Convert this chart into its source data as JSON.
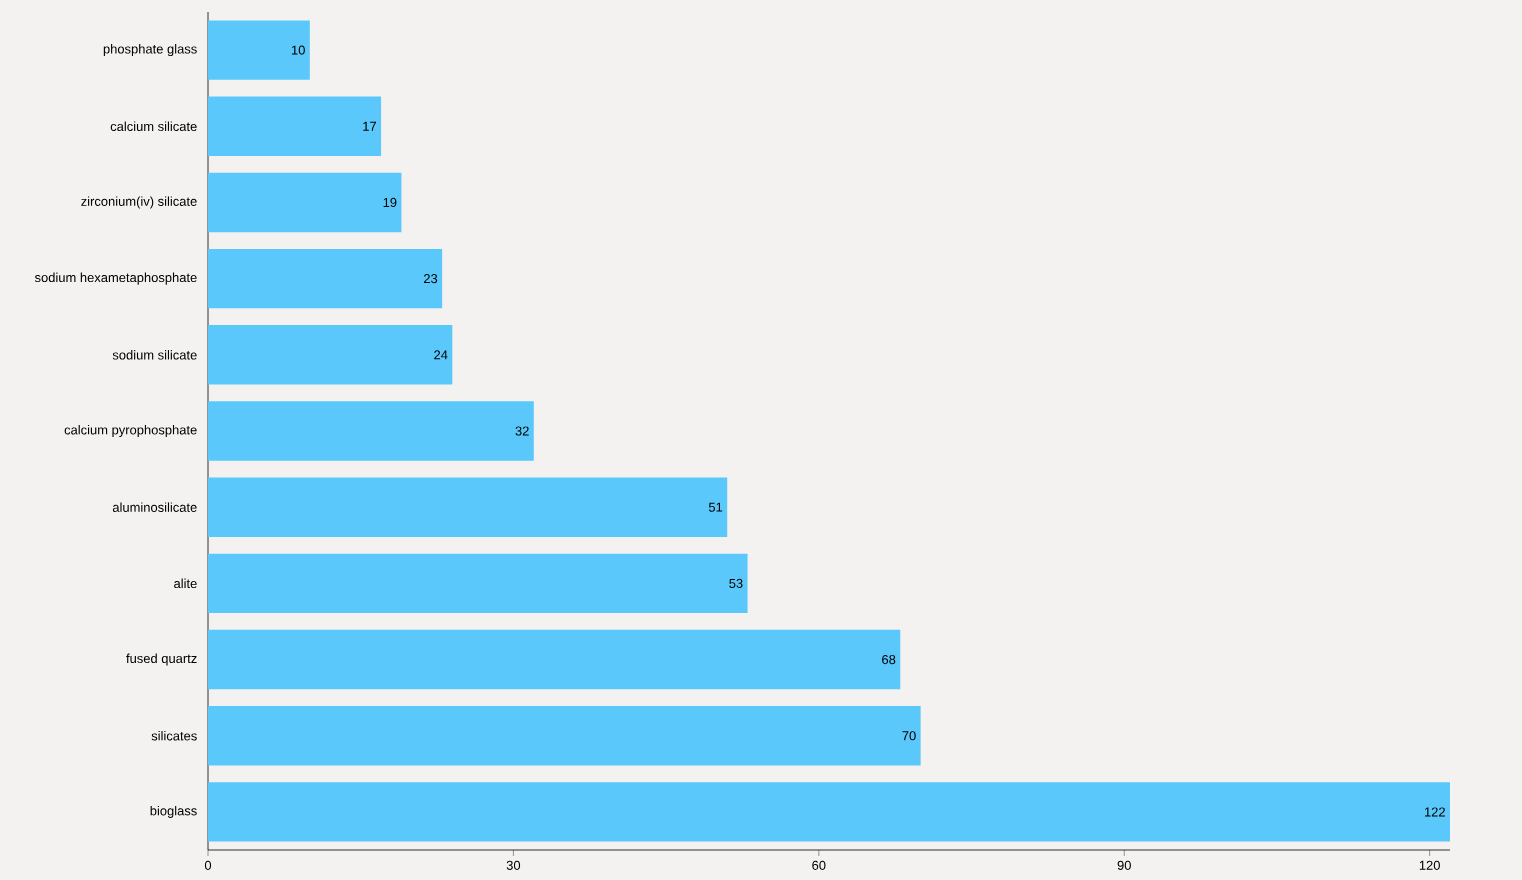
{
  "chart_data": {
    "type": "bar",
    "orientation": "horizontal",
    "categories": [
      "phosphate glass",
      "calcium silicate",
      "zirconium(iv) silicate",
      "sodium hexametaphosphate",
      "sodium silicate",
      "calcium pyrophosphate",
      "aluminosilicate",
      "alite",
      "fused quartz",
      "silicates",
      "bioglass"
    ],
    "values": [
      10,
      17,
      19,
      23,
      24,
      32,
      51,
      53,
      68,
      70,
      122
    ],
    "color": "#5ac8fa",
    "xlim": [
      0,
      122
    ],
    "xticks": [
      0,
      30,
      60,
      90,
      120
    ],
    "data_labels": true,
    "grid": false
  }
}
